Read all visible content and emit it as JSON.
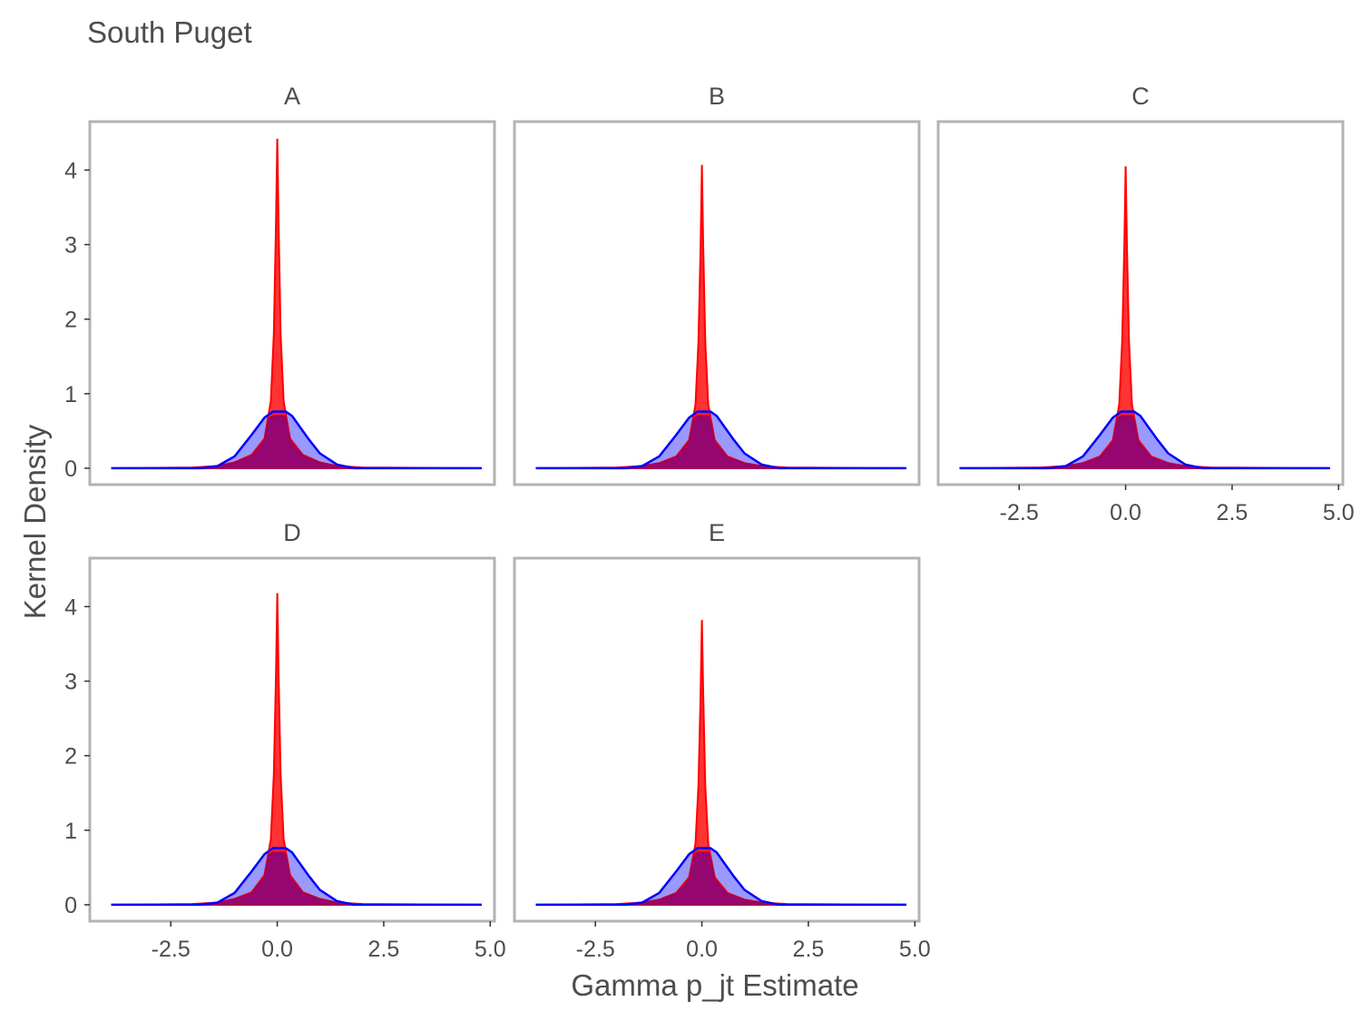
{
  "chart_data": {
    "type": "area",
    "title": "South Puget",
    "xlabel": "Gamma p_jt Estimate",
    "ylabel": "Kernel Density",
    "xlim": [
      -4.4,
      5.1
    ],
    "ylim": [
      -0.22,
      4.65
    ],
    "x_ticks": [
      -2.5,
      0.0,
      2.5,
      5.0
    ],
    "x_tick_labels": [
      "-2.5",
      "0.0",
      "2.5",
      "5.0"
    ],
    "y_ticks": [
      0,
      1,
      2,
      3,
      4
    ],
    "y_tick_labels": [
      "0",
      "1",
      "2",
      "3",
      "4"
    ],
    "grid": false,
    "legend": "none",
    "colors": {
      "peak": "#ff0000",
      "normal": "#0000ff",
      "overlap": "#800080",
      "frame": "#b3b3b3"
    },
    "panels": [
      {
        "label": "A",
        "series": [
          {
            "x": [
              -3.9,
              -2.0,
              -1.4,
              -1.0,
              -0.6,
              -0.3,
              -0.15,
              -0.08,
              -0.03,
              0.0,
              0.03,
              0.08,
              0.15,
              0.3,
              0.6,
              1.0,
              1.4,
              2.0,
              4.8
            ],
            "y": [
              0,
              0.01,
              0.03,
              0.08,
              0.18,
              0.4,
              0.9,
              1.8,
              3.3,
              4.42,
              3.3,
              1.8,
              0.9,
              0.4,
              0.18,
              0.08,
              0.03,
              0.01,
              0
            ]
          },
          {
            "x": [
              -3.9,
              -1.8,
              -1.4,
              -1.0,
              -0.6,
              -0.3,
              -0.1,
              0.2,
              0.35,
              0.55,
              0.75,
              1.0,
              1.4,
              1.8,
              4.8
            ],
            "y": [
              0,
              0,
              0.03,
              0.16,
              0.45,
              0.68,
              0.76,
              0.76,
              0.7,
              0.54,
              0.38,
              0.2,
              0.05,
              0,
              0
            ]
          }
        ]
      },
      {
        "label": "B",
        "series": [
          {
            "x": [
              -3.9,
              -2.0,
              -1.4,
              -1.0,
              -0.6,
              -0.3,
              -0.15,
              -0.08,
              -0.03,
              0.0,
              0.03,
              0.08,
              0.15,
              0.3,
              0.6,
              1.0,
              1.4,
              2.0,
              4.8
            ],
            "y": [
              0,
              0.01,
              0.03,
              0.07,
              0.16,
              0.38,
              0.85,
              1.7,
              3.0,
              4.07,
              3.0,
              1.7,
              0.85,
              0.38,
              0.16,
              0.07,
              0.03,
              0.01,
              0
            ]
          },
          {
            "x": [
              -3.9,
              -1.8,
              -1.4,
              -1.0,
              -0.6,
              -0.3,
              -0.1,
              0.2,
              0.35,
              0.55,
              0.75,
              1.0,
              1.4,
              1.8,
              4.8
            ],
            "y": [
              0,
              0,
              0.03,
              0.16,
              0.45,
              0.68,
              0.76,
              0.76,
              0.7,
              0.54,
              0.38,
              0.2,
              0.05,
              0,
              0
            ]
          }
        ]
      },
      {
        "label": "C",
        "series": [
          {
            "x": [
              -3.9,
              -2.0,
              -1.4,
              -1.0,
              -0.6,
              -0.3,
              -0.15,
              -0.08,
              -0.03,
              0.0,
              0.03,
              0.08,
              0.15,
              0.3,
              0.6,
              1.0,
              1.4,
              2.0,
              4.8
            ],
            "y": [
              0,
              0.01,
              0.03,
              0.07,
              0.16,
              0.38,
              0.85,
              1.7,
              3.0,
              4.05,
              3.0,
              1.7,
              0.85,
              0.38,
              0.16,
              0.07,
              0.03,
              0.01,
              0
            ]
          },
          {
            "x": [
              -3.9,
              -1.8,
              -1.4,
              -1.0,
              -0.6,
              -0.3,
              -0.1,
              0.2,
              0.35,
              0.55,
              0.75,
              1.0,
              1.4,
              1.8,
              4.8
            ],
            "y": [
              0,
              0,
              0.03,
              0.16,
              0.45,
              0.68,
              0.76,
              0.76,
              0.7,
              0.54,
              0.38,
              0.2,
              0.05,
              0,
              0
            ]
          }
        ]
      },
      {
        "label": "D",
        "series": [
          {
            "x": [
              -3.9,
              -2.0,
              -1.4,
              -1.0,
              -0.6,
              -0.3,
              -0.15,
              -0.08,
              -0.03,
              0.0,
              0.03,
              0.08,
              0.15,
              0.3,
              0.6,
              1.0,
              1.4,
              2.0,
              4.8
            ],
            "y": [
              0,
              0.01,
              0.03,
              0.08,
              0.17,
              0.4,
              0.88,
              1.75,
              3.1,
              4.18,
              3.1,
              1.75,
              0.88,
              0.4,
              0.17,
              0.08,
              0.03,
              0.01,
              0
            ]
          },
          {
            "x": [
              -3.9,
              -1.8,
              -1.4,
              -1.0,
              -0.6,
              -0.3,
              -0.1,
              0.2,
              0.35,
              0.55,
              0.75,
              1.0,
              1.4,
              1.8,
              4.8
            ],
            "y": [
              0,
              0,
              0.03,
              0.16,
              0.45,
              0.68,
              0.76,
              0.76,
              0.7,
              0.54,
              0.38,
              0.2,
              0.05,
              0,
              0
            ]
          }
        ]
      },
      {
        "label": "E",
        "series": [
          {
            "x": [
              -3.9,
              -2.0,
              -1.4,
              -1.0,
              -0.6,
              -0.3,
              -0.15,
              -0.08,
              -0.03,
              0.0,
              0.03,
              0.08,
              0.15,
              0.3,
              0.6,
              1.0,
              1.4,
              2.0,
              4.8
            ],
            "y": [
              0,
              0.01,
              0.03,
              0.07,
              0.16,
              0.37,
              0.82,
              1.6,
              2.85,
              3.82,
              2.85,
              1.6,
              0.82,
              0.37,
              0.16,
              0.07,
              0.03,
              0.01,
              0
            ]
          },
          {
            "x": [
              -3.9,
              -1.8,
              -1.4,
              -1.0,
              -0.6,
              -0.3,
              -0.1,
              0.2,
              0.35,
              0.55,
              0.75,
              1.0,
              1.4,
              1.8,
              4.8
            ],
            "y": [
              0,
              0,
              0.03,
              0.16,
              0.45,
              0.68,
              0.76,
              0.76,
              0.7,
              0.54,
              0.38,
              0.2,
              0.05,
              0,
              0
            ]
          }
        ]
      }
    ]
  }
}
